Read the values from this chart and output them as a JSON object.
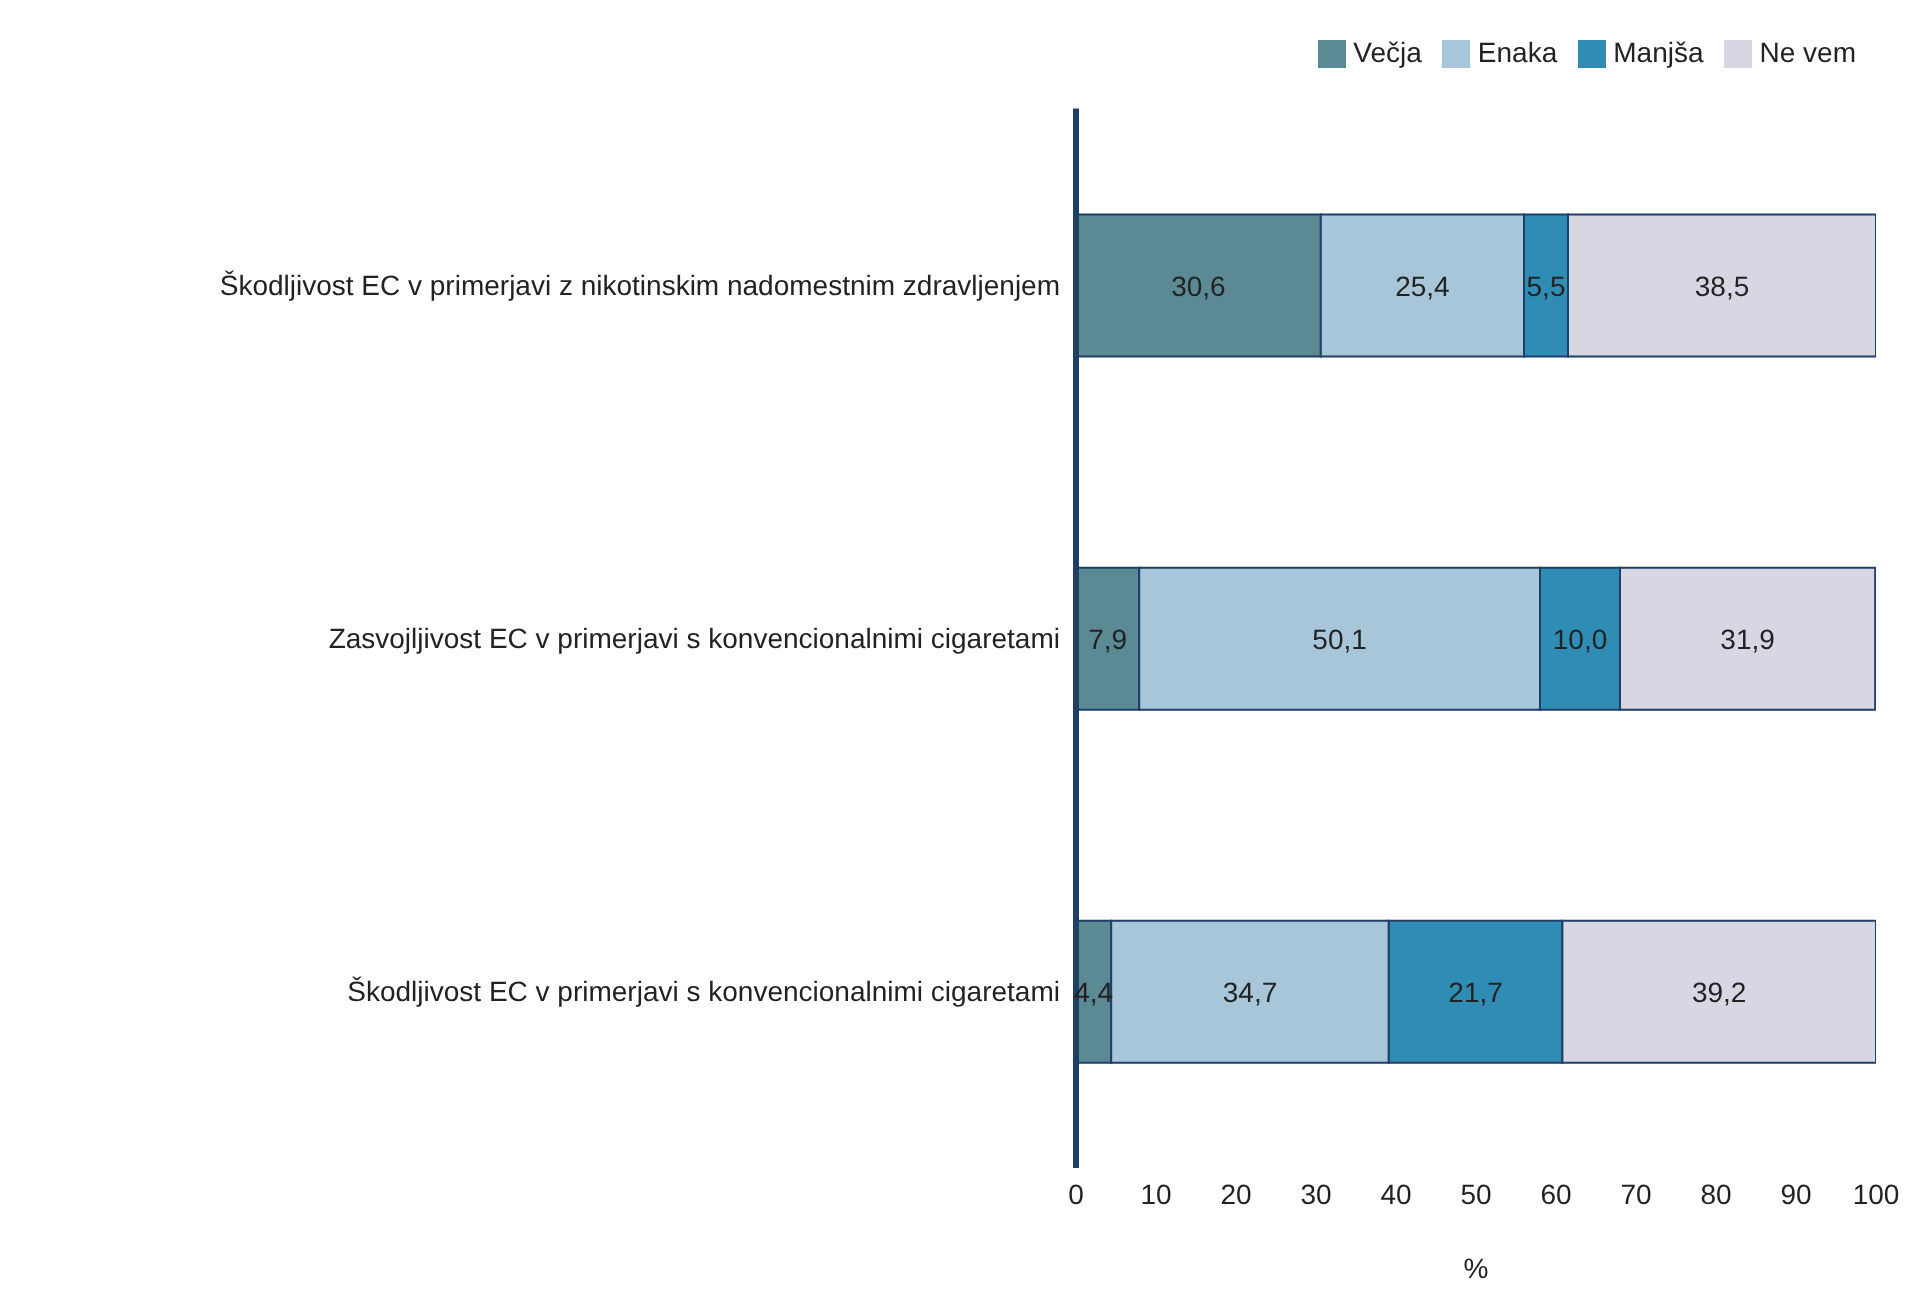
{
  "chart_data": {
    "type": "bar",
    "orientation": "horizontal",
    "stacked": true,
    "xlabel": "%",
    "categories": [
      "Škodljivost EC v primerjavi z nikotinskim nadomestnim zdravljenjem",
      "Zasvojljivost EC v primerjavi s konvencionalnimi cigaretami",
      "Škodljivost EC v primerjavi s konvencionalnimi cigaretami"
    ],
    "series": [
      {
        "name": "Večja",
        "color": "#5b8a95",
        "values": [
          30.6,
          7.9,
          4.4
        ],
        "value_labels": [
          "30,6",
          "7,9",
          "4,4"
        ]
      },
      {
        "name": "Enaka",
        "color": "#a8c6d9",
        "values": [
          25.4,
          50.1,
          34.7
        ],
        "value_labels": [
          "25,4",
          "50,1",
          "34,7"
        ]
      },
      {
        "name": "Manjša",
        "color": "#2f8db5",
        "values": [
          5.5,
          10.0,
          21.7
        ],
        "value_labels": [
          "5,5",
          "10,0",
          "21,7"
        ]
      },
      {
        "name": "Ne vem",
        "color": "#d8d6e2",
        "values": [
          38.5,
          31.9,
          39.2
        ],
        "value_labels": [
          "38,5",
          "31,9",
          "39,2"
        ]
      }
    ],
    "xlim": [
      0,
      100
    ],
    "xticks": [
      0,
      10,
      20,
      30,
      40,
      50,
      60,
      70,
      80,
      90,
      100
    ],
    "grid": false,
    "legend": "top right"
  }
}
